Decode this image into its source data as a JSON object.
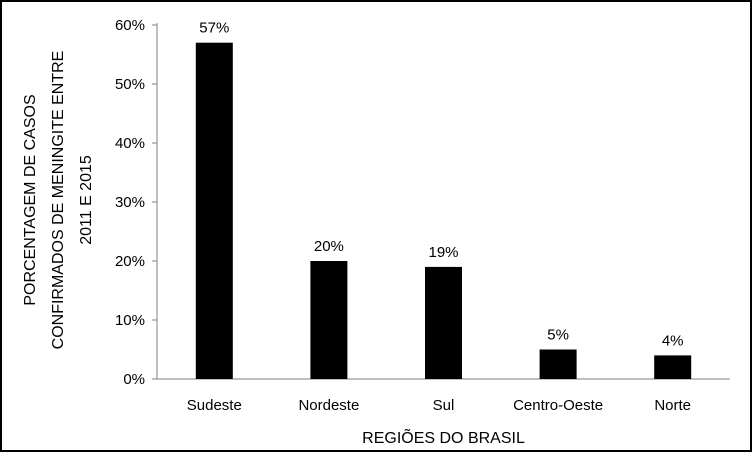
{
  "chart_data": {
    "type": "bar",
    "categories": [
      "Sudeste",
      "Nordeste",
      "Sul",
      "Centro-Oeste",
      "Norte"
    ],
    "values": [
      57,
      20,
      19,
      5,
      4
    ],
    "data_labels": [
      "57%",
      "20%",
      "19%",
      "5%",
      "4%"
    ],
    "yticks": [
      0,
      10,
      20,
      30,
      40,
      50,
      60
    ],
    "ytick_labels": [
      "0%",
      "10%",
      "20%",
      "30%",
      "40%",
      "50%",
      "60%"
    ],
    "ylim": [
      0,
      60
    ],
    "xlabel": "REGIÕES DO BRASIL",
    "ylabel_lines": [
      "PORCENTAGEM DE CASOS",
      "CONFIRMADOS DE MENINGITE ENTRE",
      "2011 E 2015"
    ],
    "grid": false,
    "legend": false,
    "bar_color": "#000000"
  }
}
